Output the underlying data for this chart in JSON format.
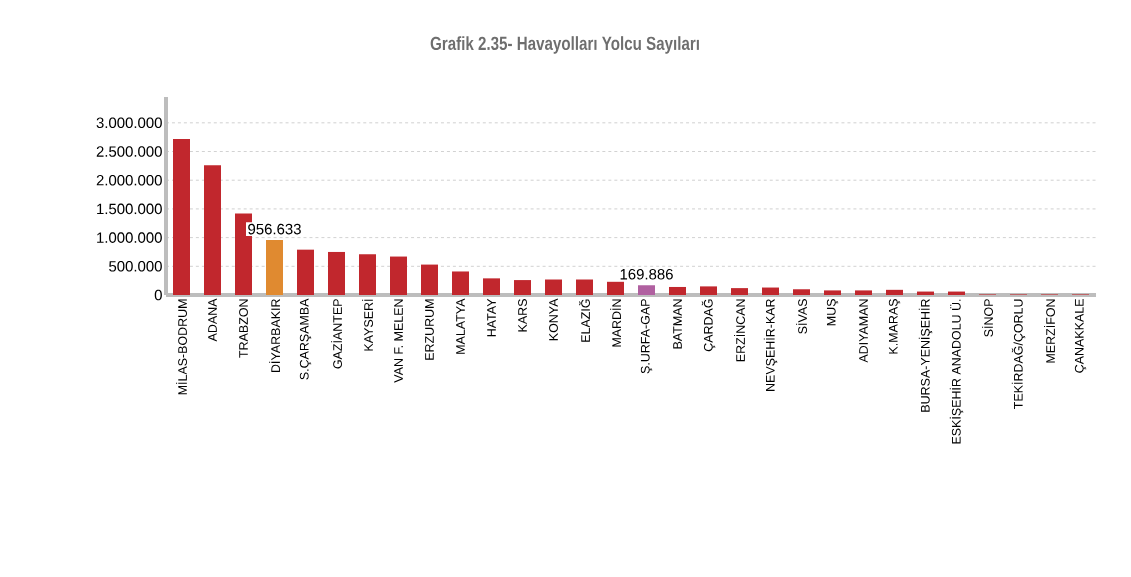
{
  "chart_data": {
    "type": "bar",
    "title": "Grafik 2.35- Havayolları Yolcu Sayıları",
    "categories": [
      "MİLAS-BODRUM",
      "ADANA",
      "TRABZON",
      "DİYARBAKIR",
      "S.ÇARŞAMBA",
      "GAZİANTEP",
      "KAYSERİ",
      "VAN F. MELEN",
      "ERZURUM",
      "MALATYA",
      "HATAY",
      "KARS",
      "KONYA",
      "ELAZIĞ",
      "MARDİN",
      "Ş.URFA-GAP",
      "BATMAN",
      "ÇARDAĞ",
      "ERZİNCAN",
      "NEVŞEHİR-KAR",
      "SİVAS",
      "MUŞ",
      "ADIYAMAN",
      "K.MARAŞ",
      "BURSA-YENİŞEHİR",
      "ESKİŞEHİR ANADOLU Ü.",
      "SİNOP",
      "TEKİRDAĞ/ÇORLU",
      "MERZİFON",
      "ÇANAKKALE"
    ],
    "values": [
      2720000,
      2260000,
      1420000,
      956633,
      790000,
      750000,
      710000,
      670000,
      530000,
      410000,
      290000,
      260000,
      270000,
      270000,
      230000,
      169886,
      140000,
      150000,
      120000,
      130000,
      100000,
      80000,
      80000,
      90000,
      60000,
      60000,
      10000,
      10000,
      10000,
      10000
    ],
    "colors": [
      "#c1272d",
      "#c1272d",
      "#c1272d",
      "#e08a30",
      "#c1272d",
      "#c1272d",
      "#c1272d",
      "#c1272d",
      "#c1272d",
      "#c1272d",
      "#c1272d",
      "#c1272d",
      "#c1272d",
      "#c1272d",
      "#c1272d",
      "#b060a0",
      "#c1272d",
      "#c1272d",
      "#c1272d",
      "#c1272d",
      "#c1272d",
      "#c1272d",
      "#c1272d",
      "#c1272d",
      "#c1272d",
      "#c1272d",
      "#c1272d",
      "#c1272d",
      "#c1272d",
      "#c1272d"
    ],
    "value_labels": [
      null,
      null,
      null,
      "956.633",
      null,
      null,
      null,
      null,
      null,
      null,
      null,
      null,
      null,
      null,
      null,
      "169.886",
      null,
      null,
      null,
      null,
      null,
      null,
      null,
      null,
      null,
      null,
      null,
      null,
      null,
      null
    ],
    "ylim": [
      0,
      3450000
    ],
    "yticks": [
      {
        "value": 0,
        "label": "0"
      },
      {
        "value": 500000,
        "label": "500.000"
      },
      {
        "value": 1000000,
        "label": "1.000.000"
      },
      {
        "value": 1500000,
        "label": "1.500.000"
      },
      {
        "value": 2000000,
        "label": "2.000.000"
      },
      {
        "value": 2500000,
        "label": "2.500.000"
      },
      {
        "value": 3000000,
        "label": "3.000.000"
      }
    ],
    "grid": "y"
  }
}
